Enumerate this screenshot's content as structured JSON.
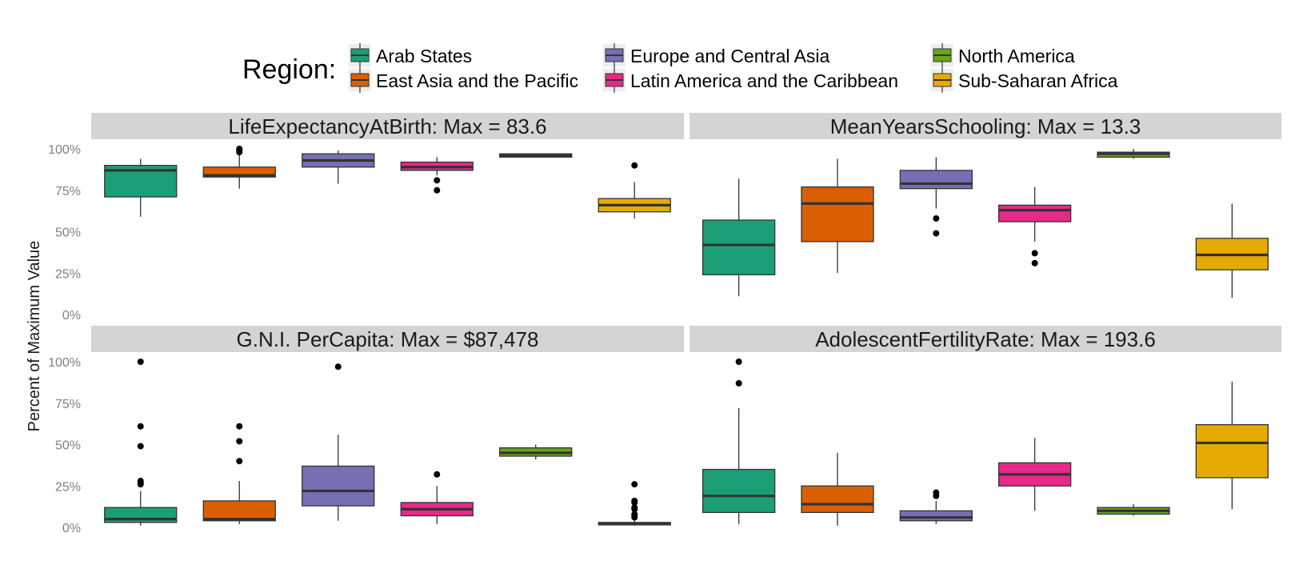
{
  "chart_data": {
    "type": "boxplot",
    "ylabel": "Percent of Maximum Value",
    "ylim": [
      0,
      100
    ],
    "yticks": [
      0,
      25,
      50,
      75,
      100
    ],
    "ytick_labels": [
      "0%",
      "25%",
      "50%",
      "75%",
      "100%"
    ],
    "legend": {
      "title": "Region:",
      "position": "top"
    },
    "regions": [
      {
        "name": "Arab States",
        "color": "#1b9e77"
      },
      {
        "name": "East Asia and the Pacific",
        "color": "#d95f02"
      },
      {
        "name": "Europe and Central Asia",
        "color": "#7570b3"
      },
      {
        "name": "Latin America and the Caribbean",
        "color": "#e7298a"
      },
      {
        "name": "North America",
        "color": "#66a61e"
      },
      {
        "name": "Sub-Saharan Africa",
        "color": "#e6ab02"
      }
    ],
    "panels": [
      {
        "title": "LifeExpectancyAtBirth: Max = 83.6",
        "boxes": [
          {
            "min": 59,
            "q1": 71,
            "median": 87,
            "q3": 90,
            "max": 94,
            "outliers": []
          },
          {
            "min": 76,
            "q1": 83,
            "median": 84,
            "q3": 89,
            "max": 97,
            "outliers": [
              98,
              99,
              100
            ]
          },
          {
            "min": 79,
            "q1": 89,
            "median": 93,
            "q3": 97,
            "max": 99,
            "outliers": []
          },
          {
            "min": 84,
            "q1": 87,
            "median": 89,
            "q3": 92,
            "max": 95,
            "outliers": [
              81,
              75
            ]
          },
          {
            "min": 95,
            "q1": 95,
            "median": 96,
            "q3": 97,
            "max": 97,
            "outliers": []
          },
          {
            "min": 58,
            "q1": 62,
            "median": 66,
            "q3": 70,
            "max": 80,
            "outliers": [
              90
            ]
          }
        ]
      },
      {
        "title": "MeanYearsSchooling: Max = 13.3",
        "boxes": [
          {
            "min": 11,
            "q1": 24,
            "median": 42,
            "q3": 57,
            "max": 82,
            "outliers": []
          },
          {
            "min": 25,
            "q1": 44,
            "median": 67,
            "q3": 77,
            "max": 94,
            "outliers": []
          },
          {
            "min": 64,
            "q1": 76,
            "median": 79,
            "q3": 87,
            "max": 95,
            "outliers": [
              58,
              49
            ]
          },
          {
            "min": 44,
            "q1": 56,
            "median": 63,
            "q3": 66,
            "max": 77,
            "outliers": [
              37,
              31
            ]
          },
          {
            "min": 94,
            "q1": 95,
            "median": 97,
            "q3": 98,
            "max": 100,
            "outliers": []
          },
          {
            "min": 10,
            "q1": 27,
            "median": 36,
            "q3": 46,
            "max": 67,
            "outliers": []
          }
        ]
      },
      {
        "title": "G.N.I. PerCapita: Max = $87,478",
        "boxes": [
          {
            "min": 1,
            "q1": 3,
            "median": 5,
            "q3": 12,
            "max": 22,
            "outliers": [
              100,
              61,
              49,
              28,
              27,
              26
            ]
          },
          {
            "min": 2,
            "q1": 4,
            "median": 5,
            "q3": 16,
            "max": 28,
            "outliers": [
              61,
              52,
              40
            ]
          },
          {
            "min": 4,
            "q1": 13,
            "median": 22,
            "q3": 37,
            "max": 56,
            "outliers": [
              97
            ]
          },
          {
            "min": 2,
            "q1": 7,
            "median": 11,
            "q3": 15,
            "max": 25,
            "outliers": [
              32
            ]
          },
          {
            "min": 41,
            "q1": 43,
            "median": 45,
            "q3": 48,
            "max": 50,
            "outliers": []
          },
          {
            "min": 1,
            "q1": 1.5,
            "median": 2,
            "q3": 3,
            "max": 4,
            "outliers": [
              26,
              16,
              15,
              12,
              11,
              8,
              7,
              6
            ]
          }
        ]
      },
      {
        "title": "AdolescentFertilityRate: Max = 193.6",
        "boxes": [
          {
            "min": 2,
            "q1": 9,
            "median": 19,
            "q3": 35,
            "max": 72,
            "outliers": [
              100,
              87
            ]
          },
          {
            "min": 1,
            "q1": 9,
            "median": 14,
            "q3": 25,
            "max": 45,
            "outliers": []
          },
          {
            "min": 2,
            "q1": 4,
            "median": 6,
            "q3": 10,
            "max": 16,
            "outliers": [
              21,
              19
            ]
          },
          {
            "min": 10,
            "q1": 25,
            "median": 32,
            "q3": 39,
            "max": 54,
            "outliers": []
          },
          {
            "min": 7,
            "q1": 8,
            "median": 10,
            "q3": 12,
            "max": 14,
            "outliers": []
          },
          {
            "min": 11,
            "q1": 30,
            "median": 51,
            "q3": 62,
            "max": 88,
            "outliers": []
          }
        ]
      }
    ]
  }
}
